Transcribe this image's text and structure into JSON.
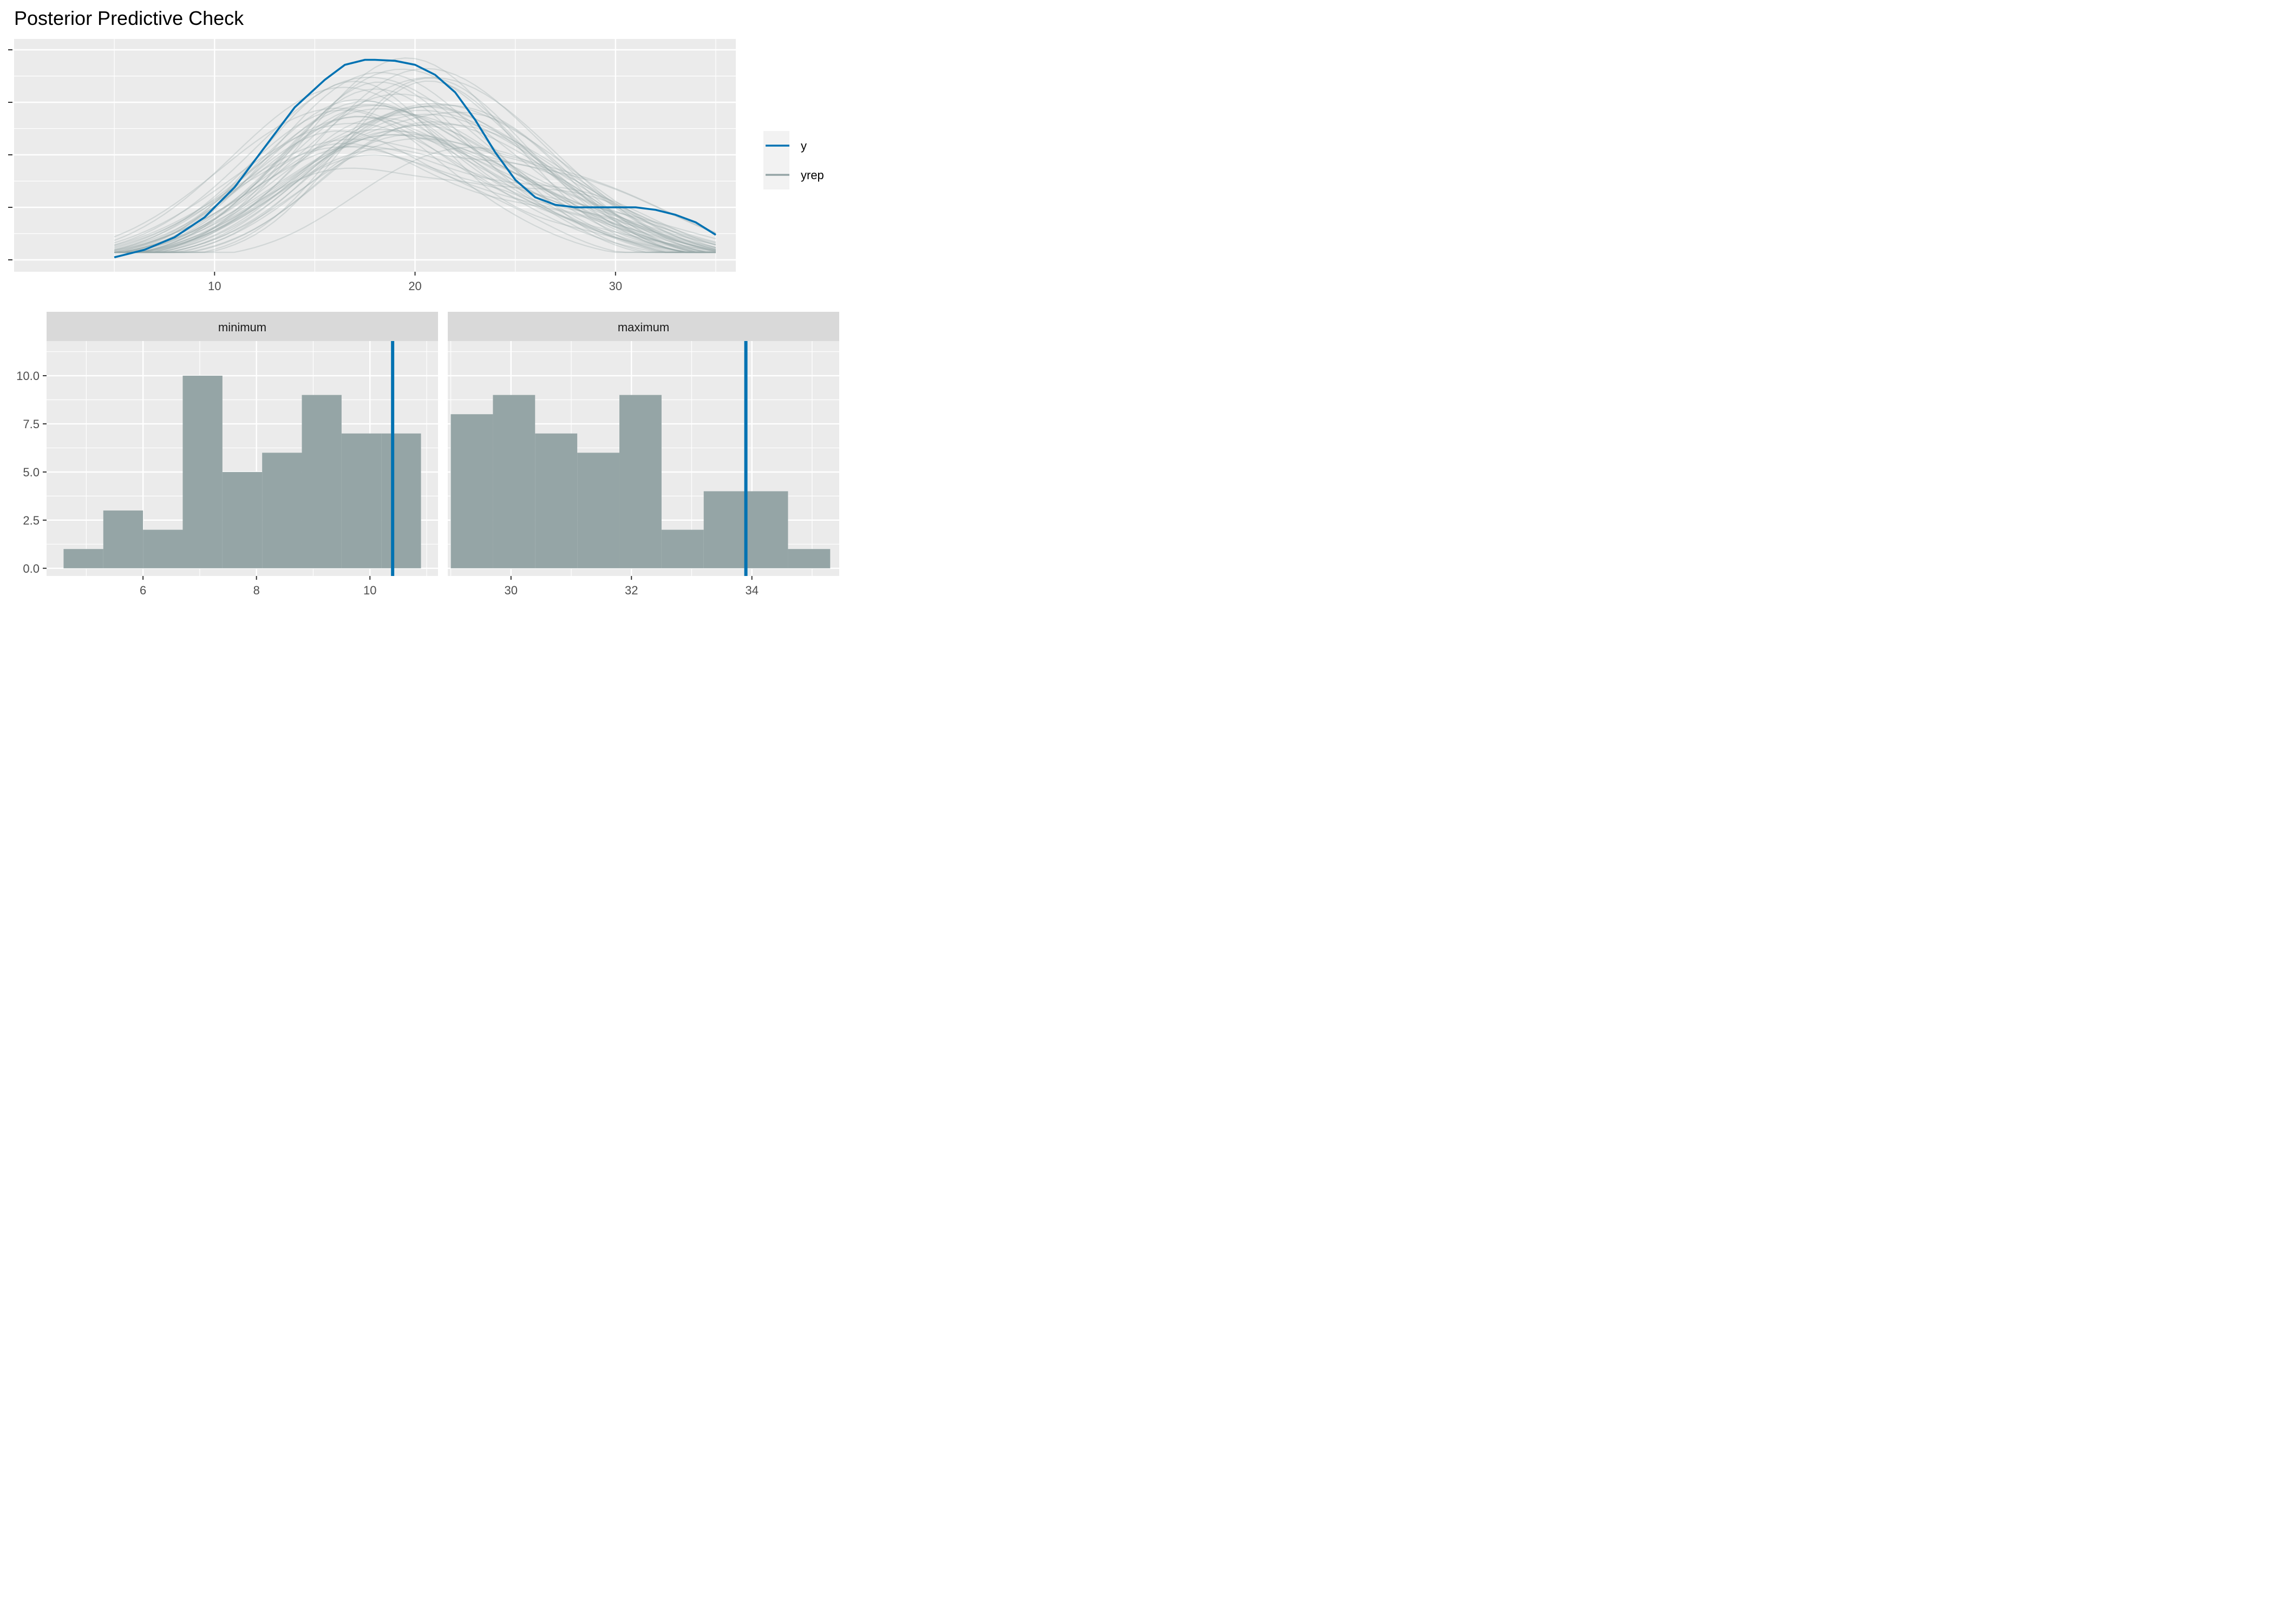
{
  "title": "Posterior Predictive Check",
  "colors": {
    "y": "#0072b2",
    "yrep": "#95a5a6",
    "panel_bg": "#ebebeb",
    "strip_bg": "#d9d9d9",
    "grid": "#ffffff"
  },
  "legend": {
    "position": "right",
    "entries": [
      {
        "label": "y",
        "color": "#0072b2"
      },
      {
        "label": "yrep",
        "color": "#95a5a6"
      }
    ]
  },
  "chart_data": [
    {
      "type": "line",
      "name": "density overlay",
      "xlim": [
        5,
        35
      ],
      "x_ticks": [
        10,
        20,
        30
      ],
      "x_tick_labels": [
        "10",
        "20",
        "30"
      ],
      "y_ticks_unlabeled": 5,
      "grid": true,
      "y_observed": {
        "name": "y",
        "x": [
          5.0,
          6.5,
          8.0,
          9.5,
          11.0,
          12.5,
          14.0,
          15.5,
          16.5,
          17.5,
          18.0,
          19.0,
          20.0,
          21.0,
          22.0,
          23.0,
          24.0,
          25.0,
          26.0,
          27.0,
          28.0,
          29.0,
          30.0,
          31.0,
          32.0,
          33.0,
          34.0,
          35.0
        ],
        "density": [
          0.005,
          0.02,
          0.045,
          0.085,
          0.145,
          0.225,
          0.305,
          0.36,
          0.39,
          0.4,
          0.4,
          0.398,
          0.39,
          0.37,
          0.335,
          0.28,
          0.215,
          0.16,
          0.125,
          0.11,
          0.105,
          0.105,
          0.105,
          0.105,
          0.1,
          0.09,
          0.075,
          0.05
        ]
      },
      "yrep_draws": 50
    },
    {
      "type": "bar",
      "name": "minimum",
      "facet_label": "minimum",
      "bins": [
        {
          "from": 4.6,
          "to": 5.3,
          "count": 1
        },
        {
          "from": 5.3,
          "to": 6.0,
          "count": 3
        },
        {
          "from": 6.0,
          "to": 6.7,
          "count": 2
        },
        {
          "from": 6.7,
          "to": 7.4,
          "count": 10
        },
        {
          "from": 7.4,
          "to": 8.1,
          "count": 5
        },
        {
          "from": 8.1,
          "to": 8.8,
          "count": 6
        },
        {
          "from": 8.8,
          "to": 9.5,
          "count": 9
        },
        {
          "from": 9.5,
          "to": 10.2,
          "count": 7
        },
        {
          "from": 10.2,
          "to": 10.9,
          "count": 7
        }
      ],
      "observed_value": 10.4,
      "xlim": [
        4.3,
        11.2
      ],
      "x_ticks": [
        6,
        8,
        10
      ],
      "x_tick_labels": [
        "6",
        "8",
        "10"
      ],
      "ylim": [
        -0.4,
        11.8
      ],
      "y_ticks": [
        0,
        2.5,
        5,
        7.5,
        10
      ],
      "y_tick_labels": [
        "0.0",
        "2.5",
        "5.0",
        "7.5",
        "10.0"
      ]
    },
    {
      "type": "bar",
      "name": "maximum",
      "facet_label": "maximum",
      "bins": [
        {
          "from": 29.0,
          "to": 29.7,
          "count": 8
        },
        {
          "from": 29.7,
          "to": 30.4,
          "count": 9
        },
        {
          "from": 30.4,
          "to": 31.1,
          "count": 7
        },
        {
          "from": 31.1,
          "to": 31.8,
          "count": 6
        },
        {
          "from": 31.8,
          "to": 32.5,
          "count": 9
        },
        {
          "from": 32.5,
          "to": 33.2,
          "count": 2
        },
        {
          "from": 33.2,
          "to": 33.9,
          "count": 4
        },
        {
          "from": 33.9,
          "to": 34.6,
          "count": 4
        },
        {
          "from": 34.6,
          "to": 35.3,
          "count": 1
        }
      ],
      "observed_value": 33.9,
      "xlim": [
        28.95,
        35.45
      ],
      "x_ticks": [
        30,
        32,
        34
      ],
      "x_tick_labels": [
        "30",
        "32",
        "34"
      ],
      "ylim": [
        -0.4,
        11.8
      ]
    }
  ]
}
